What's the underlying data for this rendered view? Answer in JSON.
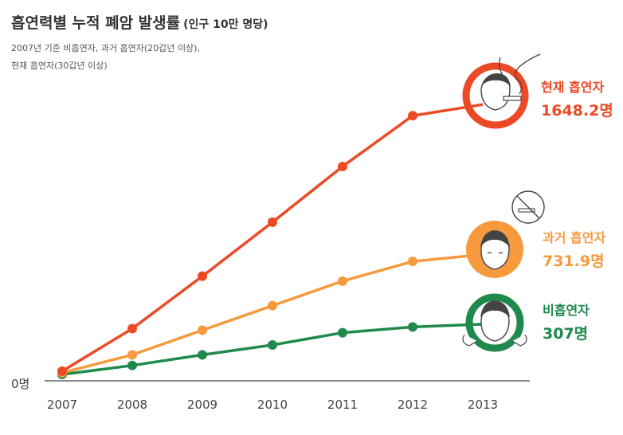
{
  "header": {
    "title": "흡연력별 누적 폐암 발생률",
    "title_unit": "(인구 10만 명당)",
    "subtitle_line1": "2007년 기준 비흡연자, 과거 흡연자(20갑년 이상),",
    "subtitle_line2": "현재 흡연자(30갑년 이상)"
  },
  "colors": {
    "current": "#ec4a26",
    "former": "#f79a3e",
    "never": "#1f8a4c"
  },
  "chart_data": {
    "type": "line",
    "title": "흡연력별 누적 폐암 발생률 (인구 10만 명당)",
    "categories": [
      "2007",
      "2008",
      "2009",
      "2010",
      "2011",
      "2012",
      "2013"
    ],
    "zero_label": "0명",
    "ylim": [
      0,
      1800
    ],
    "grid": false,
    "series": [
      {
        "name": "현재 흡연자",
        "value_label": "1648.2명",
        "color": "#ec4a26",
        "values": [
          20,
          280,
          600,
          930,
          1270,
          1580,
          1648.2
        ]
      },
      {
        "name": "과거 흡연자",
        "value_label": "731.9명",
        "color": "#f79a3e",
        "values": [
          10,
          120,
          270,
          420,
          570,
          690,
          731.9
        ]
      },
      {
        "name": "비흡연자",
        "value_label": "307명",
        "color": "#1f8a4c",
        "values": [
          0,
          55,
          120,
          180,
          255,
          290,
          307
        ]
      }
    ]
  }
}
